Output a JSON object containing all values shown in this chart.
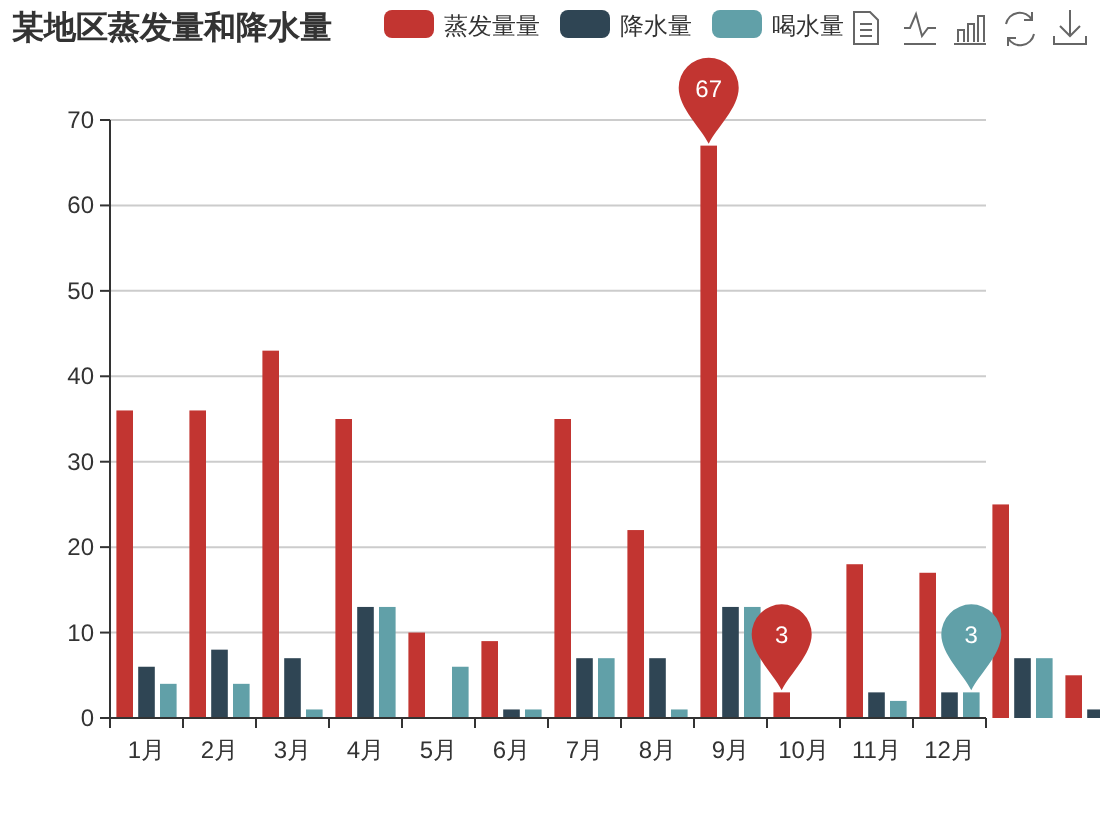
{
  "chart_data": {
    "type": "bar",
    "title": "某地区蒸发量和降水量",
    "categories": [
      "1月",
      "2月",
      "3月",
      "4月",
      "5月",
      "6月",
      "7月",
      "8月",
      "9月",
      "10月",
      "11月",
      "12月",
      null,
      null
    ],
    "series": [
      {
        "name": "蒸发量量",
        "color": "#c23531",
        "values": [
          36,
          36,
          43,
          35,
          10,
          9,
          35,
          22,
          67,
          3,
          18,
          17,
          25,
          5
        ],
        "value_labels": [
          null,
          null,
          null,
          null,
          null,
          null,
          null,
          null,
          "67",
          "3",
          null,
          null,
          null,
          null
        ]
      },
      {
        "name": "降水量",
        "color": "#2f4554",
        "values": [
          6,
          8,
          7,
          13,
          0,
          1,
          7,
          7,
          13,
          0,
          3,
          3,
          7,
          1
        ],
        "value_labels": [
          null,
          null,
          null,
          null,
          null,
          null,
          null,
          null,
          null,
          null,
          null,
          null,
          null,
          null
        ]
      },
      {
        "name": "喝水量",
        "color": "#61a0a8",
        "values": [
          4,
          4,
          1,
          13,
          6,
          1,
          7,
          1,
          13,
          0,
          2,
          3,
          7,
          null
        ],
        "value_labels": [
          null,
          null,
          null,
          null,
          null,
          null,
          null,
          null,
          null,
          null,
          null,
          "3",
          null,
          null
        ]
      }
    ],
    "ylim": [
      0,
      70
    ],
    "yticks": [
      0,
      10,
      20,
      30,
      40,
      50,
      60,
      70
    ],
    "grid": "y",
    "legend": "top"
  }
}
